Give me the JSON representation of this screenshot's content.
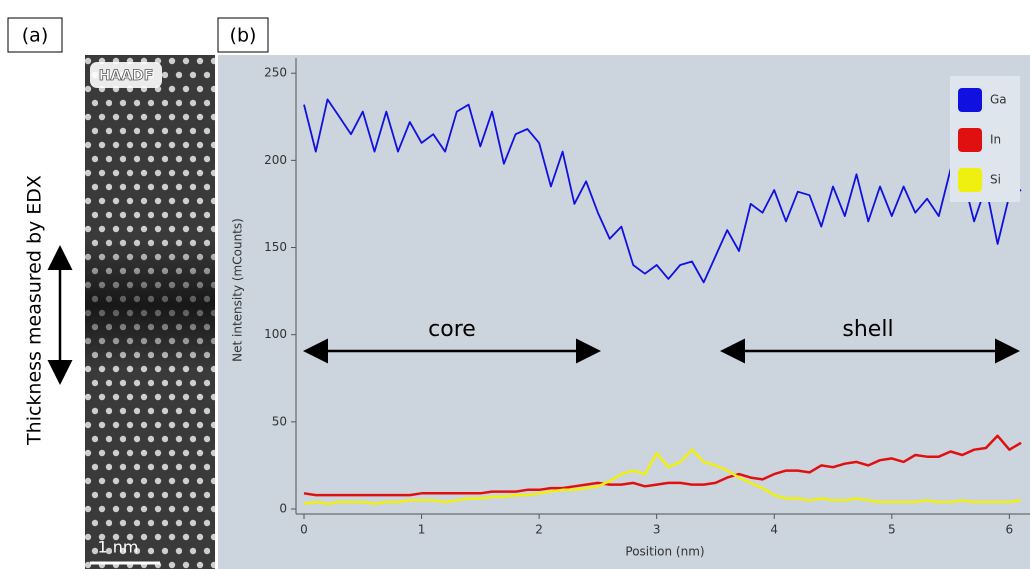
{
  "panel_labels": [
    "(a)",
    "(b)"
  ],
  "image": {
    "label": "HAADF",
    "scale_bar": "1 nm",
    "caption": "Thickness measured by EDX"
  },
  "chart_data": {
    "type": "line",
    "xlabel": "Position (nm)",
    "ylabel": "Net intensity (mCounts)",
    "annotations": [
      "core",
      "shell"
    ],
    "x": [
      0,
      0.1,
      0.2,
      0.3,
      0.4,
      0.5,
      0.6,
      0.7,
      0.8,
      0.9,
      1,
      1.1,
      1.2,
      1.3,
      1.4,
      1.5,
      1.6,
      1.7,
      1.8,
      1.9,
      2,
      2.1,
      2.2,
      2.3,
      2.4,
      2.5,
      2.6,
      2.7,
      2.8,
      2.9,
      3,
      3.1,
      3.2,
      3.3,
      3.4,
      3.5,
      3.6,
      3.7,
      3.8,
      3.9,
      4,
      4.1,
      4.2,
      4.3,
      4.4,
      4.5,
      4.6,
      4.7,
      4.8,
      4.9,
      5,
      5.1,
      5.2,
      5.3,
      5.4,
      5.5,
      5.6,
      5.7,
      5.8,
      5.9,
      6,
      6.1
    ],
    "series": [
      {
        "name": "Ga",
        "color": "#1010e0",
        "values": [
          232,
          205,
          235,
          225,
          215,
          228,
          205,
          228,
          205,
          222,
          210,
          215,
          205,
          228,
          232,
          208,
          228,
          198,
          215,
          218,
          210,
          185,
          205,
          175,
          188,
          170,
          155,
          162,
          140,
          135,
          140,
          132,
          140,
          142,
          130,
          145,
          160,
          148,
          175,
          170,
          183,
          165,
          182,
          180,
          162,
          185,
          168,
          192,
          165,
          185,
          168,
          185,
          170,
          178,
          168,
          195,
          192,
          165,
          185,
          152,
          180,
          183
        ]
      },
      {
        "name": "In",
        "color": "#e01010",
        "values": [
          9,
          8,
          8,
          8,
          8,
          8,
          8,
          8,
          8,
          8,
          9,
          9,
          9,
          9,
          9,
          9,
          10,
          10,
          10,
          11,
          11,
          12,
          12,
          13,
          14,
          15,
          14,
          14,
          15,
          13,
          14,
          15,
          15,
          14,
          14,
          15,
          18,
          20,
          18,
          17,
          20,
          22,
          22,
          21,
          25,
          24,
          26,
          27,
          25,
          28,
          29,
          27,
          31,
          30,
          30,
          33,
          31,
          34,
          35,
          42,
          34,
          38
        ]
      },
      {
        "name": "Si",
        "color": "#f0f010",
        "values": [
          3,
          4,
          3,
          4,
          4,
          4,
          3,
          4,
          4,
          5,
          5,
          5,
          4,
          5,
          6,
          6,
          7,
          7,
          8,
          8,
          9,
          10,
          11,
          11,
          12,
          13,
          16,
          20,
          22,
          20,
          32,
          24,
          27,
          34,
          27,
          25,
          22,
          18,
          15,
          12,
          8,
          6,
          6,
          5,
          6,
          5,
          5,
          6,
          5,
          4,
          4,
          4,
          4,
          5,
          4,
          4,
          5,
          4,
          4,
          4,
          4,
          5
        ]
      }
    ],
    "xlim": [
      0,
      6.15
    ],
    "ylim": [
      0,
      257
    ],
    "xticks": [
      0,
      1,
      2,
      3,
      4,
      5,
      6
    ],
    "yticks": [
      0,
      50,
      100,
      150,
      200,
      250
    ],
    "grid": false,
    "legend": "upper right"
  }
}
